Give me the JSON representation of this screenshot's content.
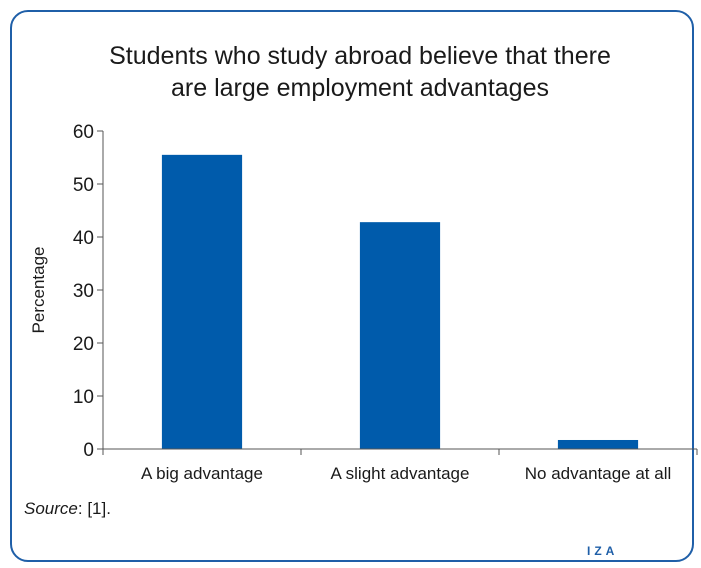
{
  "chart_data": {
    "type": "bar",
    "title_lines": [
      "Students who study abroad believe that there",
      "are large employment advantages"
    ],
    "categories": [
      "A big advantage",
      "A slight advantage",
      "No advantage at all"
    ],
    "values": [
      55.5,
      42.8,
      1.7
    ],
    "xlabel": "",
    "ylabel": "Percentage",
    "ylim": [
      0,
      60
    ],
    "yticks": [
      0,
      10,
      20,
      30,
      40,
      50,
      60
    ],
    "bar_color": "#005bab",
    "grid": false,
    "legend": "none"
  },
  "source": {
    "label": "Source",
    "text": ": [1]."
  },
  "logo": "IZA"
}
